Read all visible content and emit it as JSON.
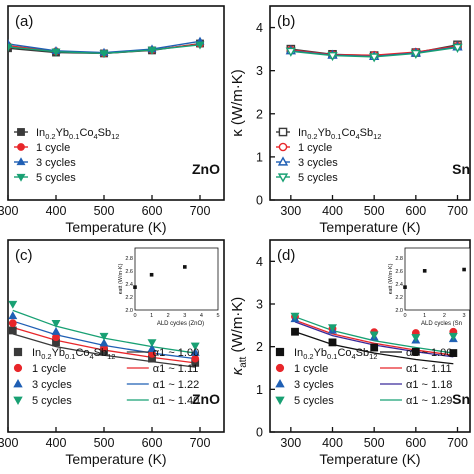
{
  "chart_data": [
    {
      "type": "line",
      "panel": "(a)",
      "material": "ZnO",
      "xlabel": "Temperature (K)",
      "ylabel": "",
      "xlim": [
        300,
        750
      ],
      "ylim": [
        0,
        4.5
      ],
      "xticks": [
        "300",
        "400",
        "500",
        "600",
        "700"
      ],
      "yticks": [],
      "x": [
        300,
        400,
        500,
        600,
        700
      ],
      "series": [
        {
          "name": "In0.2Yb0.1Co4Sb12",
          "marker": "square",
          "color": "#3a3a3a",
          "values": [
            3.52,
            3.42,
            3.4,
            3.47,
            3.63
          ]
        },
        {
          "name": "1 cycle",
          "marker": "circle",
          "color": "#e8262a",
          "values": [
            3.58,
            3.45,
            3.4,
            3.48,
            3.62
          ]
        },
        {
          "name": "3 cycles",
          "marker": "triangle-up",
          "color": "#1f5fb4",
          "values": [
            3.62,
            3.46,
            3.42,
            3.5,
            3.68
          ]
        },
        {
          "name": "5 cycles",
          "marker": "triangle-down",
          "color": "#18a073",
          "values": [
            3.55,
            3.44,
            3.4,
            3.48,
            3.6
          ]
        }
      ],
      "legend": "bottom-left",
      "grid": false
    },
    {
      "type": "line",
      "panel": "(b)",
      "material": "Sn",
      "xlabel": "Temperature (K)",
      "ylabel": "κ (W/m·K)",
      "xlim": [
        250,
        730
      ],
      "ylim": [
        0,
        4.5
      ],
      "xticks": [
        "300",
        "400",
        "500",
        "600",
        "700"
      ],
      "yticks": [
        "0",
        "1",
        "2",
        "3",
        "4"
      ],
      "x": [
        300,
        400,
        500,
        600,
        700
      ],
      "series": [
        {
          "name": "In0.2Yb0.1Co4Sb12",
          "marker": "square-open",
          "color": "#3a3a3a",
          "values": [
            3.5,
            3.38,
            3.35,
            3.42,
            3.6
          ]
        },
        {
          "name": "1 cycle",
          "marker": "circle-open",
          "color": "#e8262a",
          "values": [
            3.48,
            3.37,
            3.36,
            3.43,
            3.57
          ]
        },
        {
          "name": "3 cycles",
          "marker": "triangle-up-open",
          "color": "#1f5fb4",
          "values": [
            3.46,
            3.36,
            3.33,
            3.41,
            3.55
          ]
        },
        {
          "name": "5 cycles",
          "marker": "triangle-down-open",
          "color": "#18a073",
          "values": [
            3.45,
            3.35,
            3.32,
            3.4,
            3.54
          ]
        }
      ],
      "legend": "bottom-left",
      "grid": false
    },
    {
      "type": "scatter",
      "panel": "(c)",
      "material": "ZnO",
      "xlabel": "Temperature (K)",
      "ylabel": "",
      "xlim": [
        300,
        750
      ],
      "ylim": [
        0,
        4.5
      ],
      "xticks": [
        "300",
        "400",
        "500",
        "600",
        "700"
      ],
      "yticks": [],
      "x": [
        310,
        400,
        500,
        600,
        690
      ],
      "series": [
        {
          "name": "In0.2Yb0.1Co4Sb12",
          "fit": "α1 ~ 1.00",
          "marker": "square",
          "color": "#3a3a3a",
          "values": [
            2.38,
            2.1,
            1.88,
            1.72,
            1.62
          ],
          "fit_values": [
            2.3,
            2.0,
            1.8,
            1.65,
            1.52
          ]
        },
        {
          "name": "1 cycle",
          "fit": "α1 ~ 1.11",
          "marker": "circle",
          "color": "#e8262a",
          "values": [
            2.55,
            2.22,
            1.98,
            1.83,
            1.72
          ],
          "fit_values": [
            2.45,
            2.15,
            1.92,
            1.75,
            1.62
          ]
        },
        {
          "name": "3 cycles",
          "fit": "α1 ~ 1.22",
          "marker": "triangle-up",
          "color": "#1f5fb4",
          "values": [
            2.72,
            2.35,
            2.08,
            1.95,
            1.86
          ],
          "fit_values": [
            2.6,
            2.28,
            2.03,
            1.85,
            1.72
          ]
        },
        {
          "name": "5 cycles",
          "fit": "α1 ~ 1.40",
          "marker": "triangle-down",
          "color": "#18a073",
          "values": [
            3.0,
            2.55,
            2.25,
            2.1,
            2.02
          ],
          "fit_values": [
            2.85,
            2.48,
            2.2,
            2.0,
            1.85
          ]
        }
      ],
      "inset": {
        "xlabel": "ALD cycles (ZnO)",
        "ylabel": "κatt (W/m·K)",
        "x": [
          0,
          1,
          3,
          5
        ],
        "y": [
          2.35,
          2.54,
          2.66,
          2.85
        ],
        "xticks": [
          "0",
          "1",
          "2",
          "3",
          "4",
          "5"
        ],
        "yticks": [
          "2.0",
          "2.2",
          "2.4",
          "2.6",
          "2.8"
        ],
        "xlim": [
          0,
          5
        ],
        "ylim": [
          2.0,
          2.95
        ]
      },
      "legend": "bottom",
      "grid": false
    },
    {
      "type": "scatter",
      "panel": "(d)",
      "material": "Sn",
      "xlabel": "Temperature (K)",
      "ylabel": "κatt (W/m·K)",
      "xlim": [
        250,
        730
      ],
      "ylim": [
        0,
        4.5
      ],
      "xticks": [
        "300",
        "400",
        "500",
        "600",
        "700"
      ],
      "yticks": [
        "0",
        "1",
        "2",
        "3",
        "4"
      ],
      "x": [
        310,
        400,
        500,
        600,
        690
      ],
      "series": [
        {
          "name": "In0.2Yb0.1Co4Sb12",
          "fit": "α1 ~ 1.00",
          "marker": "square",
          "color": "#111111",
          "values": [
            2.35,
            2.1,
            1.98,
            1.88,
            1.85
          ],
          "fit_values": [
            2.35,
            2.05,
            1.85,
            1.7,
            1.6
          ]
        },
        {
          "name": "1 cycle",
          "fit": "α1 ~ 1.11",
          "marker": "circle",
          "color": "#e8262a",
          "values": [
            2.7,
            2.42,
            2.34,
            2.32,
            2.35
          ],
          "fit_values": [
            2.62,
            2.3,
            2.08,
            1.92,
            1.8
          ]
        },
        {
          "name": "3 cycles",
          "fit": "α1 ~ 1.18",
          "marker": "triangle-up",
          "color": "#1f5fb4",
          "values": [
            2.65,
            2.38,
            2.22,
            2.15,
            2.18
          ],
          "fit_values": [
            2.58,
            2.26,
            2.04,
            1.88,
            1.76
          ]
        },
        {
          "name": "5 cycles",
          "fit": "α1 ~ 1.29",
          "marker": "triangle-down",
          "color": "#18a073",
          "values": [
            2.72,
            2.45,
            2.28,
            2.22,
            2.25
          ],
          "fit_values": [
            2.7,
            2.38,
            2.14,
            1.98,
            1.85
          ]
        }
      ],
      "fit_colors": [
        "#111111",
        "#e8262a",
        "#3a2a9a",
        "#18a073"
      ],
      "inset": {
        "xlabel": "ALD cycles (Sn",
        "ylabel": "κatt (W/m·K)",
        "x": [
          0,
          1,
          3,
          5
        ],
        "y": [
          2.35,
          2.6,
          2.62,
          2.65
        ],
        "xticks": [
          "0",
          "1",
          "2",
          "3"
        ],
        "yticks": [
          "2.0",
          "2.2",
          "2.4",
          "2.6",
          "2.8"
        ],
        "xlim": [
          0,
          3.3
        ],
        "ylim": [
          2.0,
          2.95
        ]
      },
      "legend": "bottom",
      "grid": false
    }
  ]
}
